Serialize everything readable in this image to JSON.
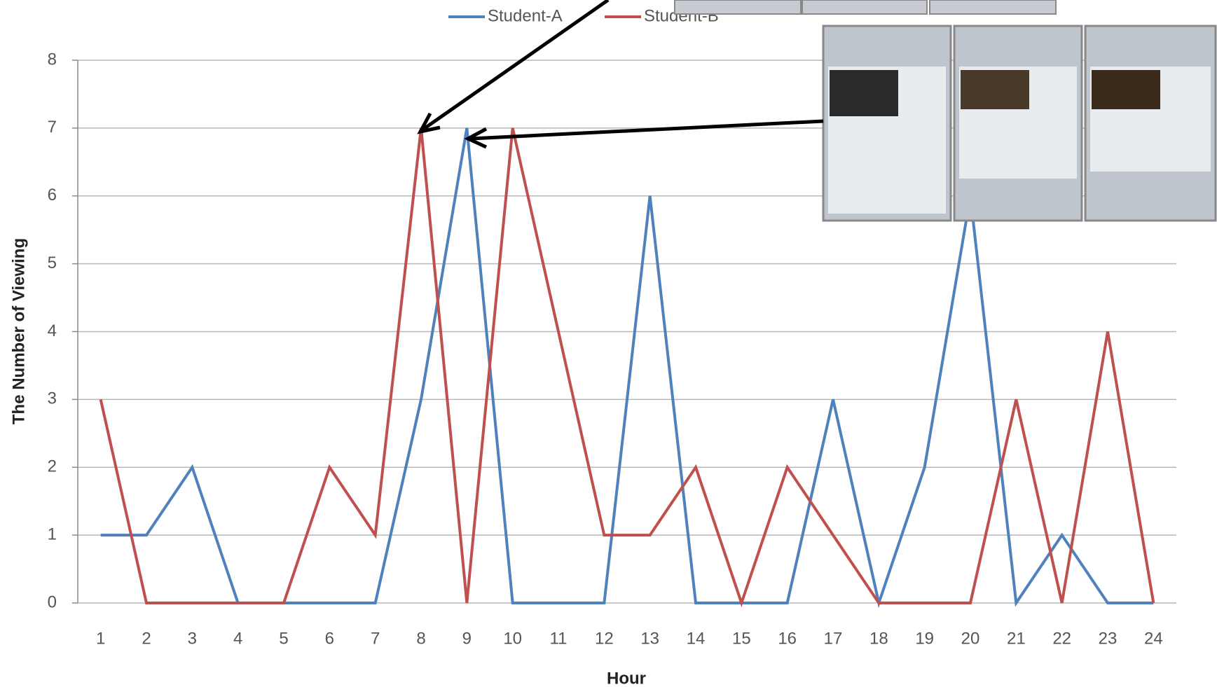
{
  "chart_data": {
    "type": "line",
    "x_label": "Hour",
    "y_label": "The Number of Viewing",
    "categories": [
      "1",
      "2",
      "3",
      "4",
      "5",
      "6",
      "7",
      "8",
      "9",
      "10",
      "11",
      "12",
      "13",
      "14",
      "15",
      "16",
      "17",
      "18",
      "19",
      "20",
      "21",
      "22",
      "23",
      "24"
    ],
    "series": [
      {
        "name": "Student-A",
        "color": "#4f81bd",
        "values": [
          1,
          1,
          2,
          0,
          0,
          0,
          0,
          3,
          7,
          0,
          0,
          0,
          6,
          0,
          0,
          0,
          3,
          0,
          2,
          6,
          0,
          1,
          0,
          0
        ]
      },
      {
        "name": "Student-B",
        "color": "#c0504d",
        "values": [
          3,
          0,
          0,
          0,
          0,
          2,
          1,
          7,
          0,
          7,
          4,
          1,
          1,
          2,
          0,
          2,
          1,
          0,
          0,
          0,
          3,
          0,
          4,
          0
        ]
      }
    ],
    "ylim": [
      0,
      8
    ],
    "yticks": [
      0,
      1,
      2,
      3,
      4,
      5,
      6,
      7,
      8
    ],
    "grid": true,
    "legend": "top"
  }
}
